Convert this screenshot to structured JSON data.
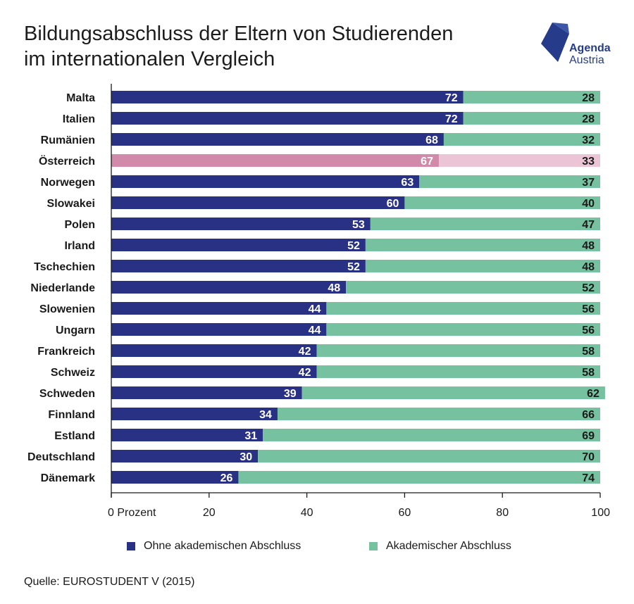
{
  "title_line1": "Bildungsabschluss der Eltern von Studierenden",
  "title_line2": "im internationalen Vergleich",
  "logo": {
    "line1": "Agenda",
    "line2": "Austria",
    "color": "#263c8a"
  },
  "source": "Quelle: EUROSTUDENT V (2015)",
  "legend": [
    {
      "label": "Ohne akademischen Abschluss",
      "color": "#283184"
    },
    {
      "label": "Akademischer Abschluss",
      "color": "#76c2a0"
    }
  ],
  "colors": {
    "series1": "#283184",
    "series2": "#76c2a0",
    "highlight1": "#d18aaa",
    "highlight2": "#ebc5d6"
  },
  "chart_data": {
    "type": "bar",
    "orientation": "horizontal",
    "stacked": true,
    "categories": [
      "Malta",
      "Italien",
      "Rumänien",
      "Österreich",
      "Norwegen",
      "Slowakei",
      "Polen",
      "Irland",
      "Tschechien",
      "Niederlande",
      "Slowenien",
      "Ungarn",
      "Frankreich",
      "Schweiz",
      "Schweden",
      "Finnland",
      "Estland",
      "Deutschland",
      "Dänemark"
    ],
    "highlight_category": "Österreich",
    "series": [
      {
        "name": "Ohne akademischen Abschluss",
        "values": [
          72,
          72,
          68,
          67,
          63,
          60,
          53,
          52,
          52,
          48,
          44,
          44,
          42,
          42,
          39,
          34,
          31,
          30,
          26
        ]
      },
      {
        "name": "Akademischer Abschluss",
        "values": [
          28,
          28,
          32,
          33,
          37,
          40,
          47,
          48,
          48,
          52,
          56,
          56,
          58,
          58,
          62,
          66,
          69,
          70,
          74
        ]
      }
    ],
    "xlim": [
      0,
      100
    ],
    "xticks": [
      0,
      20,
      40,
      60,
      80,
      100
    ],
    "xtick_labels": [
      "0 Prozent",
      "20",
      "40",
      "60",
      "80",
      "100"
    ],
    "grid": false,
    "legend_position": "bottom"
  }
}
